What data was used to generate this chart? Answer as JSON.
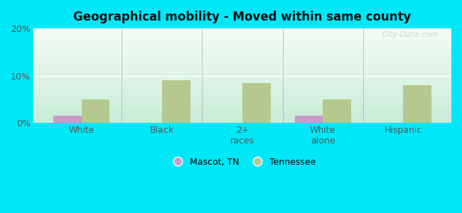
{
  "title": "Geographical mobility - Moved within same county",
  "categories": [
    "White",
    "Black",
    "2+\nraces",
    "White\nalone",
    "Hispanic"
  ],
  "mascot_values": [
    1.5,
    0,
    0,
    1.5,
    0
  ],
  "tennessee_values": [
    5.0,
    9.0,
    8.5,
    5.0,
    8.0
  ],
  "mascot_color": "#cc99cc",
  "tennessee_color": "#b5c98e",
  "background_outer": "#00e8f8",
  "ylim": [
    0,
    20
  ],
  "yticks": [
    0,
    10,
    20
  ],
  "ytick_labels": [
    "0%",
    "10%",
    "20%"
  ],
  "bar_width": 0.35,
  "legend_mascot_label": "Mascot, TN",
  "legend_tennessee_label": "Tennessee",
  "watermark": "City-Data.com",
  "grad_top": "#f5fdf5",
  "grad_bottom": "#c8ecd8"
}
